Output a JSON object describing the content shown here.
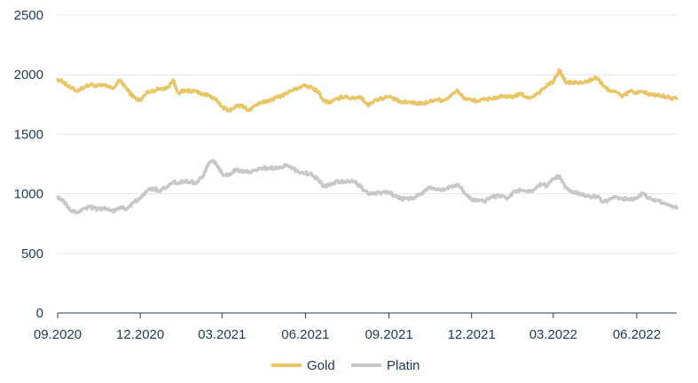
{
  "chart_data": {
    "type": "line",
    "title": "",
    "xlabel": "",
    "ylabel": "",
    "ylim": [
      0,
      2500
    ],
    "yticks": [
      0,
      500,
      1000,
      1500,
      2000,
      2500
    ],
    "xlim": [
      "2020-09-01",
      "2022-07-15"
    ],
    "xticks": [
      {
        "date": "2020-09-01",
        "label": "09.2020"
      },
      {
        "date": "2020-12-01",
        "label": "12.2020"
      },
      {
        "date": "2021-03-01",
        "label": "03.2021"
      },
      {
        "date": "2021-06-01",
        "label": "06.2021"
      },
      {
        "date": "2021-09-01",
        "label": "09.2021"
      },
      {
        "date": "2021-12-01",
        "label": "12.2021"
      },
      {
        "date": "2022-03-01",
        "label": "03.2022"
      },
      {
        "date": "2022-06-01",
        "label": "06.2022"
      }
    ],
    "grid": "horizontal",
    "legend": "bottom",
    "series": [
      {
        "name": "Gold",
        "color": "#e8c567",
        "points": [
          [
            "2020-09-01",
            1960
          ],
          [
            "2020-09-08",
            1935
          ],
          [
            "2020-09-15",
            1890
          ],
          [
            "2020-09-22",
            1865
          ],
          [
            "2020-10-01",
            1900
          ],
          [
            "2020-10-08",
            1915
          ],
          [
            "2020-10-15",
            1905
          ],
          [
            "2020-10-22",
            1910
          ],
          [
            "2020-11-01",
            1885
          ],
          [
            "2020-11-09",
            1955
          ],
          [
            "2020-11-16",
            1880
          ],
          [
            "2020-11-24",
            1810
          ],
          [
            "2020-12-01",
            1780
          ],
          [
            "2020-12-08",
            1850
          ],
          [
            "2020-12-15",
            1865
          ],
          [
            "2020-12-22",
            1880
          ],
          [
            "2021-01-01",
            1895
          ],
          [
            "2021-01-06",
            1955
          ],
          [
            "2021-01-12",
            1850
          ],
          [
            "2021-01-20",
            1865
          ],
          [
            "2021-02-01",
            1860
          ],
          [
            "2021-02-08",
            1835
          ],
          [
            "2021-02-16",
            1825
          ],
          [
            "2021-02-22",
            1790
          ],
          [
            "2021-03-01",
            1730
          ],
          [
            "2021-03-08",
            1695
          ],
          [
            "2021-03-15",
            1730
          ],
          [
            "2021-03-22",
            1740
          ],
          [
            "2021-03-31",
            1700
          ],
          [
            "2021-04-07",
            1745
          ],
          [
            "2021-04-15",
            1765
          ],
          [
            "2021-04-22",
            1785
          ],
          [
            "2021-05-01",
            1810
          ],
          [
            "2021-05-10",
            1840
          ],
          [
            "2021-05-18",
            1870
          ],
          [
            "2021-05-26",
            1895
          ],
          [
            "2021-06-01",
            1905
          ],
          [
            "2021-06-08",
            1890
          ],
          [
            "2021-06-15",
            1860
          ],
          [
            "2021-06-21",
            1780
          ],
          [
            "2021-06-29",
            1765
          ],
          [
            "2021-07-07",
            1800
          ],
          [
            "2021-07-15",
            1820
          ],
          [
            "2021-07-22",
            1800
          ],
          [
            "2021-08-01",
            1815
          ],
          [
            "2021-08-09",
            1740
          ],
          [
            "2021-08-16",
            1785
          ],
          [
            "2021-08-24",
            1800
          ],
          [
            "2021-09-01",
            1815
          ],
          [
            "2021-09-08",
            1790
          ],
          [
            "2021-09-15",
            1765
          ],
          [
            "2021-09-22",
            1770
          ],
          [
            "2021-10-01",
            1760
          ],
          [
            "2021-10-08",
            1760
          ],
          [
            "2021-10-15",
            1770
          ],
          [
            "2021-10-22",
            1790
          ],
          [
            "2021-11-01",
            1785
          ],
          [
            "2021-11-08",
            1825
          ],
          [
            "2021-11-16",
            1865
          ],
          [
            "2021-11-23",
            1800
          ],
          [
            "2021-12-01",
            1785
          ],
          [
            "2021-12-08",
            1780
          ],
          [
            "2021-12-15",
            1790
          ],
          [
            "2021-12-22",
            1800
          ],
          [
            "2022-01-03",
            1815
          ],
          [
            "2022-01-10",
            1810
          ],
          [
            "2022-01-18",
            1820
          ],
          [
            "2022-01-25",
            1840
          ],
          [
            "2022-02-01",
            1800
          ],
          [
            "2022-02-08",
            1825
          ],
          [
            "2022-02-15",
            1860
          ],
          [
            "2022-02-22",
            1910
          ],
          [
            "2022-03-01",
            1940
          ],
          [
            "2022-03-08",
            2040
          ],
          [
            "2022-03-15",
            1930
          ],
          [
            "2022-03-22",
            1935
          ],
          [
            "2022-04-01",
            1930
          ],
          [
            "2022-04-08",
            1945
          ],
          [
            "2022-04-18",
            1975
          ],
          [
            "2022-04-25",
            1905
          ],
          [
            "2022-05-02",
            1870
          ],
          [
            "2022-05-09",
            1855
          ],
          [
            "2022-05-16",
            1815
          ],
          [
            "2022-05-24",
            1860
          ],
          [
            "2022-06-01",
            1850
          ],
          [
            "2022-06-08",
            1855
          ],
          [
            "2022-06-15",
            1835
          ],
          [
            "2022-06-22",
            1830
          ],
          [
            "2022-07-01",
            1815
          ],
          [
            "2022-07-08",
            1805
          ],
          [
            "2022-07-15",
            1800
          ]
        ]
      },
      {
        "name": "Platin",
        "color": "#c8c8c8",
        "points": [
          [
            "2020-09-01",
            975
          ],
          [
            "2020-09-08",
            935
          ],
          [
            "2020-09-15",
            860
          ],
          [
            "2020-09-22",
            845
          ],
          [
            "2020-10-01",
            880
          ],
          [
            "2020-10-08",
            885
          ],
          [
            "2020-10-15",
            870
          ],
          [
            "2020-10-22",
            880
          ],
          [
            "2020-11-01",
            850
          ],
          [
            "2020-11-09",
            890
          ],
          [
            "2020-11-16",
            875
          ],
          [
            "2020-11-24",
            930
          ],
          [
            "2020-12-01",
            960
          ],
          [
            "2020-12-08",
            1020
          ],
          [
            "2020-12-15",
            1045
          ],
          [
            "2020-12-22",
            1025
          ],
          [
            "2021-01-01",
            1065
          ],
          [
            "2021-01-06",
            1100
          ],
          [
            "2021-01-12",
            1090
          ],
          [
            "2021-01-20",
            1110
          ],
          [
            "2021-02-01",
            1090
          ],
          [
            "2021-02-08",
            1150
          ],
          [
            "2021-02-16",
            1270
          ],
          [
            "2021-02-22",
            1265
          ],
          [
            "2021-03-01",
            1170
          ],
          [
            "2021-03-08",
            1150
          ],
          [
            "2021-03-15",
            1200
          ],
          [
            "2021-03-22",
            1190
          ],
          [
            "2021-03-31",
            1180
          ],
          [
            "2021-04-07",
            1200
          ],
          [
            "2021-04-15",
            1215
          ],
          [
            "2021-04-22",
            1220
          ],
          [
            "2021-05-01",
            1210
          ],
          [
            "2021-05-10",
            1245
          ],
          [
            "2021-05-18",
            1215
          ],
          [
            "2021-05-26",
            1175
          ],
          [
            "2021-06-01",
            1175
          ],
          [
            "2021-06-08",
            1160
          ],
          [
            "2021-06-15",
            1120
          ],
          [
            "2021-06-21",
            1060
          ],
          [
            "2021-06-29",
            1085
          ],
          [
            "2021-07-07",
            1105
          ],
          [
            "2021-07-15",
            1100
          ],
          [
            "2021-07-22",
            1115
          ],
          [
            "2021-08-01",
            1060
          ],
          [
            "2021-08-09",
            1000
          ],
          [
            "2021-08-16",
            1010
          ],
          [
            "2021-08-24",
            1005
          ],
          [
            "2021-09-01",
            1015
          ],
          [
            "2021-09-08",
            985
          ],
          [
            "2021-09-15",
            955
          ],
          [
            "2021-09-22",
            960
          ],
          [
            "2021-10-01",
            975
          ],
          [
            "2021-10-08",
            1010
          ],
          [
            "2021-10-15",
            1050
          ],
          [
            "2021-10-22",
            1040
          ],
          [
            "2021-11-01",
            1030
          ],
          [
            "2021-11-08",
            1060
          ],
          [
            "2021-11-16",
            1080
          ],
          [
            "2021-11-23",
            1015
          ],
          [
            "2021-12-01",
            950
          ],
          [
            "2021-12-08",
            940
          ],
          [
            "2021-12-15",
            935
          ],
          [
            "2021-12-22",
            970
          ],
          [
            "2022-01-03",
            985
          ],
          [
            "2022-01-10",
            965
          ],
          [
            "2022-01-18",
            1025
          ],
          [
            "2022-01-25",
            1030
          ],
          [
            "2022-02-01",
            1020
          ],
          [
            "2022-02-08",
            1035
          ],
          [
            "2022-02-15",
            1085
          ],
          [
            "2022-02-22",
            1065
          ],
          [
            "2022-03-01",
            1125
          ],
          [
            "2022-03-08",
            1150
          ],
          [
            "2022-03-15",
            1050
          ],
          [
            "2022-03-22",
            1020
          ],
          [
            "2022-04-01",
            990
          ],
          [
            "2022-04-08",
            980
          ],
          [
            "2022-04-18",
            980
          ],
          [
            "2022-04-25",
            930
          ],
          [
            "2022-05-02",
            950
          ],
          [
            "2022-05-09",
            975
          ],
          [
            "2022-05-16",
            960
          ],
          [
            "2022-05-24",
            950
          ],
          [
            "2022-06-01",
            965
          ],
          [
            "2022-06-08",
            1005
          ],
          [
            "2022-06-15",
            960
          ],
          [
            "2022-06-22",
            940
          ],
          [
            "2022-07-01",
            925
          ],
          [
            "2022-07-08",
            905
          ],
          [
            "2022-07-15",
            880
          ]
        ]
      }
    ]
  }
}
